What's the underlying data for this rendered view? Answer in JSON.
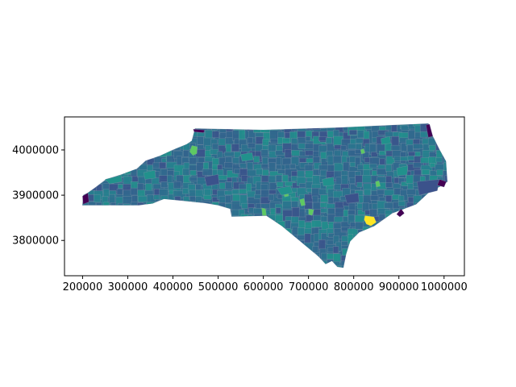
{
  "chart_data": {
    "type": "choropleth",
    "title": "",
    "xlabel": "",
    "ylabel": "",
    "xlim": [
      160000,
      1045000
    ],
    "ylim": [
      3722000,
      4073000
    ],
    "x_ticks": [
      200000,
      300000,
      400000,
      500000,
      600000,
      700000,
      800000,
      900000,
      1000000
    ],
    "x_tick_labels": [
      "200000",
      "300000",
      "400000",
      "500000",
      "600000",
      "700000",
      "800000",
      "900000",
      "1000000"
    ],
    "y_ticks": [
      3800000,
      3900000,
      4000000
    ],
    "y_tick_labels": [
      "3800000",
      "3900000",
      "4000000"
    ],
    "colormap": "viridis",
    "colormap_colors": [
      "#440154",
      "#3b528b",
      "#21918c",
      "#5ec962",
      "#fde725"
    ],
    "base_fill": "#2f6a8d",
    "boundary_color": "#7f93a8",
    "grid": false,
    "legend": false,
    "outline_lonlat": [
      [
        200000,
        3878000
      ],
      [
        202000,
        3900000
      ],
      [
        212000,
        3905000
      ],
      [
        230000,
        3918000
      ],
      [
        252000,
        3935000
      ],
      [
        285000,
        3945000
      ],
      [
        320000,
        3958000
      ],
      [
        340000,
        3976000
      ],
      [
        372000,
        3987000
      ],
      [
        400000,
        4000000
      ],
      [
        430000,
        4012000
      ],
      [
        442000,
        4020000
      ],
      [
        449000,
        4047000
      ],
      [
        600000,
        4044000
      ],
      [
        760000,
        4049000
      ],
      [
        895000,
        4055000
      ],
      [
        965000,
        4058000
      ],
      [
        975000,
        4030000
      ],
      [
        990000,
        4000000
      ],
      [
        1004000,
        3975000
      ],
      [
        1007000,
        3930000
      ],
      [
        992000,
        3920000
      ],
      [
        968000,
        3908000
      ],
      [
        938000,
        3880000
      ],
      [
        885000,
        3860000
      ],
      [
        845000,
        3832000
      ],
      [
        812000,
        3818000
      ],
      [
        792000,
        3798000
      ],
      [
        783000,
        3770000
      ],
      [
        777000,
        3740000
      ],
      [
        764000,
        3742000
      ],
      [
        752000,
        3755000
      ],
      [
        738000,
        3748000
      ],
      [
        722000,
        3765000
      ],
      [
        680000,
        3800000
      ],
      [
        640000,
        3833000
      ],
      [
        607000,
        3855000
      ],
      [
        530000,
        3853000
      ],
      [
        527000,
        3870000
      ],
      [
        500000,
        3878000
      ],
      [
        470000,
        3883000
      ],
      [
        420000,
        3888000
      ],
      [
        380000,
        3892000
      ],
      [
        355000,
        3882000
      ],
      [
        325000,
        3878000
      ]
    ],
    "highlighted_regions": [
      {
        "color": "#fde725",
        "lonlat": [
          [
            825000,
            3855000
          ],
          [
            845000,
            3852000
          ],
          [
            850000,
            3840000
          ],
          [
            838000,
            3832000
          ],
          [
            828000,
            3836000
          ],
          [
            823000,
            3846000
          ]
        ]
      },
      {
        "color": "#5ec962",
        "lonlat": [
          [
            442000,
            4010000
          ],
          [
            454000,
            4007000
          ],
          [
            453000,
            3992000
          ],
          [
            444000,
            3988000
          ],
          [
            437000,
            3996000
          ]
        ]
      },
      {
        "color": "#5ec962",
        "lonlat": [
          [
            596000,
            3872000
          ],
          [
            605000,
            3870000
          ],
          [
            607000,
            3855000
          ],
          [
            598000,
            3855000
          ]
        ]
      },
      {
        "color": "#5ec962",
        "lonlat": [
          [
            680000,
            3890000
          ],
          [
            690000,
            3893000
          ],
          [
            693000,
            3878000
          ],
          [
            684000,
            3876000
          ]
        ]
      },
      {
        "color": "#5ec962",
        "lonlat": [
          [
            700000,
            3870000
          ],
          [
            712000,
            3868000
          ],
          [
            708000,
            3855000
          ],
          [
            700000,
            3858000
          ]
        ]
      },
      {
        "color": "#5ec962",
        "lonlat": [
          [
            848000,
            3930000
          ],
          [
            856000,
            3932000
          ],
          [
            859000,
            3920000
          ],
          [
            850000,
            3918000
          ]
        ]
      },
      {
        "color": "#5ec962",
        "lonlat": [
          [
            815000,
            4000000
          ],
          [
            822000,
            4003000
          ],
          [
            825000,
            3993000
          ],
          [
            817000,
            3991000
          ]
        ]
      },
      {
        "color": "#5ec962",
        "lonlat": [
          [
            645000,
            3905000
          ],
          [
            655000,
            3907000
          ],
          [
            656000,
            3898000
          ],
          [
            647000,
            3896000
          ]
        ]
      },
      {
        "color": "#21918c",
        "lonlat": [
          [
            630000,
            3915000
          ],
          [
            660000,
            3920000
          ],
          [
            665000,
            3905000
          ],
          [
            640000,
            3900000
          ]
        ]
      },
      {
        "color": "#21918c",
        "lonlat": [
          [
            335000,
            3950000
          ],
          [
            360000,
            3955000
          ],
          [
            362000,
            3938000
          ],
          [
            338000,
            3935000
          ]
        ]
      },
      {
        "color": "#21918c",
        "lonlat": [
          [
            250000,
            3935000
          ],
          [
            285000,
            3944000
          ],
          [
            288000,
            3930000
          ],
          [
            260000,
            3925000
          ]
        ]
      },
      {
        "color": "#21918c",
        "lonlat": [
          [
            860000,
            4025000
          ],
          [
            880000,
            4030000
          ],
          [
            882000,
            4015000
          ],
          [
            862000,
            4012000
          ]
        ]
      },
      {
        "color": "#21918c",
        "lonlat": [
          [
            895000,
            3960000
          ],
          [
            920000,
            3965000
          ],
          [
            918000,
            3945000
          ],
          [
            897000,
            3943000
          ]
        ]
      },
      {
        "color": "#21918c",
        "lonlat": [
          [
            550000,
            3990000
          ],
          [
            575000,
            3994000
          ],
          [
            578000,
            3978000
          ],
          [
            553000,
            3975000
          ]
        ]
      },
      {
        "color": "#21918c",
        "lonlat": [
          [
            730000,
            3935000
          ],
          [
            755000,
            3940000
          ],
          [
            757000,
            3922000
          ],
          [
            733000,
            3920000
          ]
        ]
      },
      {
        "color": "#3b528b",
        "lonlat": [
          [
            940000,
            3930000
          ],
          [
            990000,
            3935000
          ],
          [
            985000,
            3910000
          ],
          [
            945000,
            3900000
          ]
        ]
      },
      {
        "color": "#3b528b",
        "lonlat": [
          [
            470000,
            3940000
          ],
          [
            500000,
            3946000
          ],
          [
            502000,
            3925000
          ],
          [
            475000,
            3920000
          ]
        ]
      },
      {
        "color": "#3b528b",
        "lonlat": [
          [
            780000,
            3900000
          ],
          [
            810000,
            3905000
          ],
          [
            812000,
            3885000
          ],
          [
            785000,
            3882000
          ]
        ]
      },
      {
        "color": "#440154",
        "lonlat": [
          [
            200000,
            3898000
          ],
          [
            212000,
            3905000
          ],
          [
            214000,
            3885000
          ],
          [
            201000,
            3880000
          ]
        ]
      },
      {
        "color": "#440154",
        "lonlat": [
          [
            895000,
            3858000
          ],
          [
            905000,
            3870000
          ],
          [
            912000,
            3860000
          ],
          [
            902000,
            3852000
          ]
        ]
      },
      {
        "color": "#440154",
        "lonlat": [
          [
            960000,
            4055000
          ],
          [
            968000,
            4057000
          ],
          [
            975000,
            4030000
          ],
          [
            965000,
            4028000
          ]
        ]
      },
      {
        "color": "#440154",
        "lonlat": [
          [
            445000,
            4046000
          ],
          [
            470000,
            4044000
          ],
          [
            468000,
            4038000
          ],
          [
            447000,
            4040000
          ]
        ]
      },
      {
        "color": "#440154",
        "lonlat": [
          [
            990000,
            3935000
          ],
          [
            1005000,
            3930000
          ],
          [
            1000000,
            3918000
          ],
          [
            985000,
            3922000
          ]
        ]
      }
    ]
  }
}
